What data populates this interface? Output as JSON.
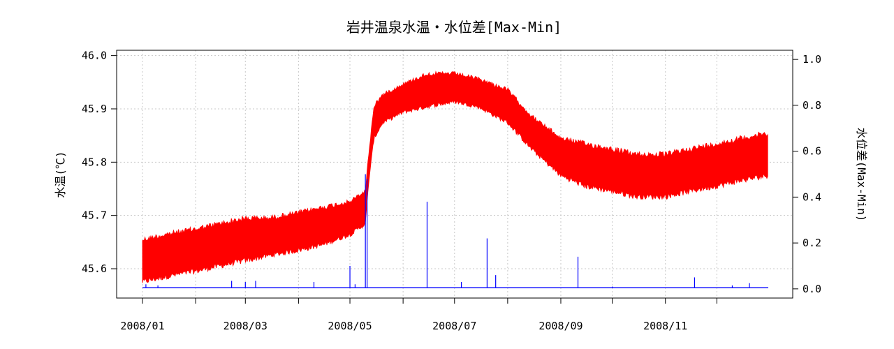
{
  "chart_data": {
    "type": "line",
    "title": "岩井温泉水温・水位差[Max-Min]",
    "xlabel": "",
    "ylabel": "水温(℃)",
    "y2label": "水位差(Max-Min)",
    "x_range": [
      "2008/01/01",
      "2008/12/31"
    ],
    "x_ticks": [
      "2008/01",
      "2008/02",
      "2008/03",
      "2008/04",
      "2008/05",
      "2008/06",
      "2008/07",
      "2008/08",
      "2008/09",
      "2008/10",
      "2008/11",
      "2008/12"
    ],
    "x_tick_labels": [
      "2008/01",
      "2008/03",
      "2008/05",
      "2008/07",
      "2008/09",
      "2008/11"
    ],
    "ylim": [
      45.545,
      46.01
    ],
    "y_ticks": [
      "45.6",
      "45.7",
      "45.8",
      "45.9",
      "46.0"
    ],
    "y2lim": [
      -0.04,
      1.04
    ],
    "y2_ticks": [
      "0.0",
      "0.2",
      "0.4",
      "0.6",
      "0.8",
      "1.0"
    ],
    "grid": true,
    "series": [
      {
        "axis": "left",
        "color": "#ff0000",
        "x": [
          "2008/01/01",
          "2008/01/15",
          "2008/02/01",
          "2008/02/15",
          "2008/03/01",
          "2008/03/15",
          "2008/04/01",
          "2008/04/15",
          "2008/05/01",
          "2008/05/10",
          "2008/05/12",
          "2008/05/15",
          "2008/05/20",
          "2008/06/01",
          "2008/06/15",
          "2008/07/01",
          "2008/07/15",
          "2008/08/01",
          "2008/08/15",
          "2008/09/01",
          "2008/09/15",
          "2008/10/01",
          "2008/10/15",
          "2008/11/01",
          "2008/11/15",
          "2008/12/01",
          "2008/12/15",
          "2008/12/31"
        ],
        "max": [
          45.66,
          45.67,
          45.68,
          45.69,
          45.7,
          45.7,
          45.71,
          45.72,
          45.73,
          45.75,
          45.82,
          45.91,
          45.93,
          45.95,
          45.97,
          45.97,
          45.96,
          45.94,
          45.89,
          45.85,
          45.84,
          45.83,
          45.82,
          45.82,
          45.83,
          45.84,
          45.85,
          45.86
        ],
        "min": [
          45.57,
          45.58,
          45.59,
          45.6,
          45.61,
          45.62,
          45.63,
          45.64,
          45.66,
          45.68,
          45.76,
          45.84,
          45.87,
          45.89,
          45.9,
          45.91,
          45.9,
          45.87,
          45.82,
          45.77,
          45.75,
          45.74,
          45.73,
          45.73,
          45.74,
          45.75,
          45.76,
          45.77
        ]
      },
      {
        "axis": "right",
        "color": "#0000ff",
        "baseline": 0.005,
        "x": [
          "2008/01/03",
          "2008/01/10",
          "2008/02/22",
          "2008/03/01",
          "2008/03/07",
          "2008/04/10",
          "2008/05/01",
          "2008/05/04",
          "2008/05/10",
          "2008/05/11",
          "2008/06/15",
          "2008/07/05",
          "2008/07/20",
          "2008/07/25",
          "2008/09/11",
          "2008/10/01",
          "2008/11/18",
          "2008/12/10",
          "2008/12/20"
        ],
        "spikes": [
          0.02,
          0.015,
          0.035,
          0.03,
          0.035,
          0.03,
          0.1,
          0.02,
          0.5,
          0.48,
          0.38,
          0.03,
          0.22,
          0.06,
          0.14,
          0.01,
          0.05,
          0.015,
          0.025
        ]
      }
    ]
  }
}
